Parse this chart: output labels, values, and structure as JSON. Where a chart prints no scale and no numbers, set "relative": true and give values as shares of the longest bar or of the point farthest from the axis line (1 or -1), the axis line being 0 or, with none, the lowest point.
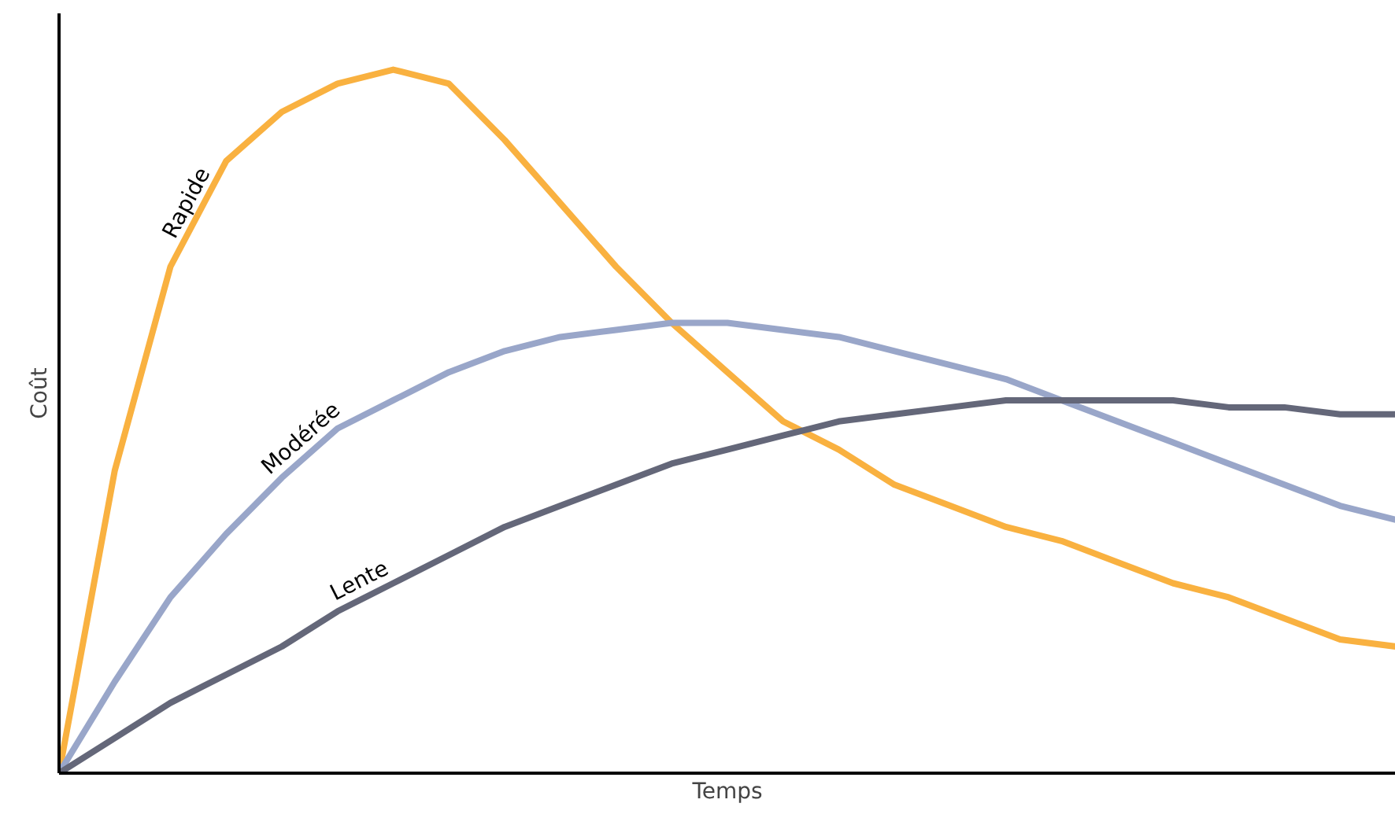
{
  "chart_data": {
    "type": "line",
    "relative": true,
    "xlabel": "Temps",
    "ylabel": "Coût",
    "categories": [
      null,
      null,
      null,
      null,
      null,
      null,
      null,
      null,
      null,
      null,
      null,
      null,
      null,
      null,
      null,
      null,
      null,
      null,
      null,
      null,
      null,
      null,
      null,
      null,
      null
    ],
    "series": [
      {
        "name": "Rapide",
        "color": "#f9b140",
        "values": [
          0,
          0.43,
          0.72,
          0.87,
          0.94,
          0.98,
          1.0,
          0.98,
          0.9,
          0.81,
          0.72,
          0.64,
          0.57,
          0.5,
          0.46,
          0.41,
          0.38,
          0.35,
          0.33,
          0.3,
          0.27,
          0.25,
          0.22,
          0.19,
          0.18
        ]
      },
      {
        "name": "Modérée",
        "color": "#99a6c9",
        "values": [
          0,
          0.13,
          0.25,
          0.34,
          0.42,
          0.49,
          0.53,
          0.57,
          0.6,
          0.62,
          0.63,
          0.64,
          0.64,
          0.63,
          0.62,
          0.6,
          0.58,
          0.56,
          0.53,
          0.5,
          0.47,
          0.44,
          0.41,
          0.38,
          0.36
        ]
      },
      {
        "name": "Lente",
        "color": "#646779",
        "values": [
          0,
          0.05,
          0.1,
          0.14,
          0.18,
          0.23,
          0.27,
          0.31,
          0.35,
          0.38,
          0.41,
          0.44,
          0.46,
          0.48,
          0.5,
          0.51,
          0.52,
          0.53,
          0.53,
          0.53,
          0.53,
          0.52,
          0.52,
          0.51,
          0.51
        ]
      }
    ]
  }
}
